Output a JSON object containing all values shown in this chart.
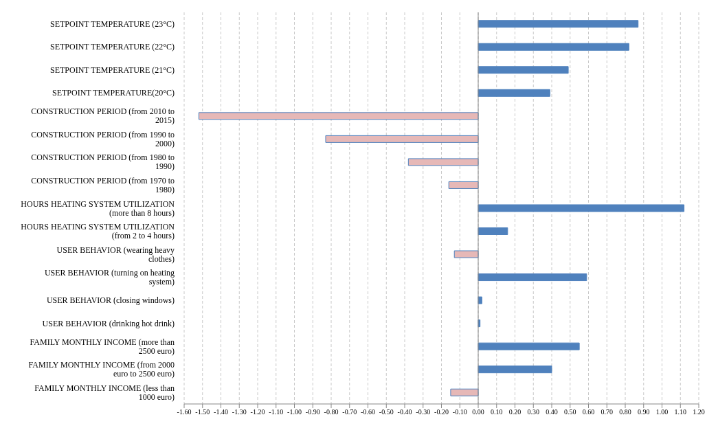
{
  "chart_data": {
    "type": "bar",
    "orientation": "horizontal",
    "categories": [
      "SETPOINT TEMPERATURE  (23°C)",
      "SETPOINT TEMPERATURE (22°C)",
      "SETPOINT TEMPERATURE (21°C)",
      "SETPOINT  TEMPERATURE(20°C)",
      "CONSTRUCTION PERIOD (from 2010 to 2015)",
      "CONSTRUCTION PERIOD (from 1990 to 2000)",
      "CONSTRUCTION PERIOD (from 1980 to 1990)",
      "CONSTRUCTION PERIOD (from 1970 to 1980)",
      "HOURS HEATING SYSTEM UTILIZATION (more than 8 hours)",
      "HOURS HEATING SYSTEM UTILIZATION (from 2 to 4 hours)",
      "USER BEHAVIOR (wearing heavy clothes)",
      "USER BEHAVIOR (turning on heating system)",
      "USER BEHAVIOR (closing windows)",
      "USER BEHAVIOR (drinking hot drink)",
      "FAMILY MONTHLY INCOME (more than 2500 euro)",
      "FAMILY MONTHLY INCOME (from 2000 euro to 2500 euro)",
      "FAMILY MONTHLY INCOME (less than 1000 euro)"
    ],
    "values": [
      0.87,
      0.82,
      0.49,
      0.39,
      -1.52,
      -0.83,
      -0.38,
      -0.16,
      1.12,
      0.16,
      -0.13,
      0.59,
      0.02,
      0.01,
      0.55,
      0.4,
      -0.15
    ],
    "colors": [
      "#4f81bd",
      "#4f81bd",
      "#4f81bd",
      "#4f81bd",
      "#e6b8b7",
      "#e6b8b7",
      "#e6b8b7",
      "#e6b8b7",
      "#4f81bd",
      "#4f81bd",
      "#e6b8b7",
      "#4f81bd",
      "#4f81bd",
      "#4f81bd",
      "#4f81bd",
      "#4f81bd",
      "#e6b8b7"
    ],
    "xlim": [
      -1.6,
      1.2
    ],
    "xticks": [
      {
        "value": -1.6,
        "label": "-1.60"
      },
      {
        "value": -1.5,
        "label": "-1.50"
      },
      {
        "value": -1.4,
        "label": "-1.40"
      },
      {
        "value": -1.3,
        "label": "-1.30"
      },
      {
        "value": -1.2,
        "label": "-1.20"
      },
      {
        "value": -1.1,
        "label": "-1.10"
      },
      {
        "value": -1.0,
        "label": "-1.00"
      },
      {
        "value": -0.9,
        "label": "-0.90"
      },
      {
        "value": -0.8,
        "label": "-0.80"
      },
      {
        "value": -0.7,
        "label": "-0.70"
      },
      {
        "value": -0.6,
        "label": "-0.60"
      },
      {
        "value": -0.5,
        "label": "-0.50"
      },
      {
        "value": -0.4,
        "label": "-0.40"
      },
      {
        "value": -0.3,
        "label": "-0.30"
      },
      {
        "value": -0.2,
        "label": "-0.20"
      },
      {
        "value": -0.1,
        "label": "-0.10"
      },
      {
        "value": 0,
        "label": "0.00"
      },
      {
        "value": 0.1,
        "label": "0.10"
      },
      {
        "value": 0.2,
        "label": "0.20"
      },
      {
        "value": 0.3,
        "label": "0.30"
      },
      {
        "value": 0.4,
        "label": "0.40"
      },
      {
        "value": 0.5,
        "label": "0.50"
      },
      {
        "value": 0.6,
        "label": "0.60"
      },
      {
        "value": 0.7,
        "label": "0.70"
      },
      {
        "value": 0.8,
        "label": "0.80"
      },
      {
        "value": 0.9,
        "label": "0.90"
      },
      {
        "value": 1.0,
        "label": "1.00"
      },
      {
        "value": 1.1,
        "label": "1.10"
      },
      {
        "value": 1.2,
        "label": "1.20"
      }
    ],
    "grid": "x"
  }
}
